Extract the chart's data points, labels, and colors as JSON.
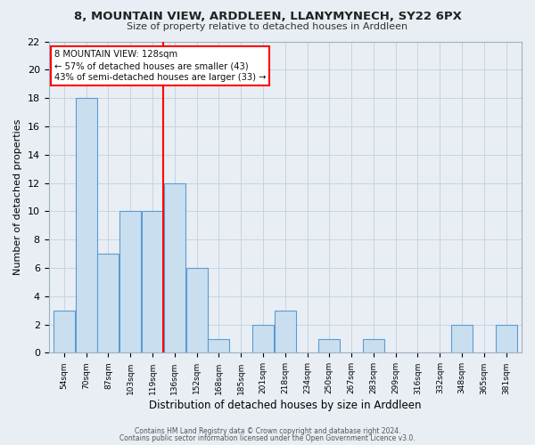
{
  "title": "8, MOUNTAIN VIEW, ARDDLEEN, LLANYMYNECH, SY22 6PX",
  "subtitle": "Size of property relative to detached houses in Arddleen",
  "xlabel": "Distribution of detached houses by size in Arddleen",
  "ylabel": "Number of detached properties",
  "bin_labels": [
    "54sqm",
    "70sqm",
    "87sqm",
    "103sqm",
    "119sqm",
    "136sqm",
    "152sqm",
    "168sqm",
    "185sqm",
    "201sqm",
    "218sqm",
    "234sqm",
    "250sqm",
    "267sqm",
    "283sqm",
    "299sqm",
    "316sqm",
    "332sqm",
    "348sqm",
    "365sqm",
    "381sqm"
  ],
  "bar_heights": [
    3,
    18,
    7,
    10,
    10,
    12,
    6,
    1,
    0,
    2,
    3,
    0,
    1,
    0,
    1,
    0,
    0,
    0,
    2,
    0,
    2
  ],
  "bar_color": "#c9dff0",
  "bar_edge_color": "#5b9bd5",
  "vline_x": 5.0,
  "ylim": [
    0,
    22
  ],
  "yticks": [
    0,
    2,
    4,
    6,
    8,
    10,
    12,
    14,
    16,
    18,
    20,
    22
  ],
  "annotation_title": "8 MOUNTAIN VIEW: 128sqm",
  "annotation_line1": "← 57% of detached houses are smaller (43)",
  "annotation_line2": "43% of semi-detached houses are larger (33) →",
  "footer1": "Contains HM Land Registry data © Crown copyright and database right 2024.",
  "footer2": "Contains public sector information licensed under the Open Government Licence v3.0.",
  "background_color": "#e8eef4",
  "plot_bg_color": "#e8eef4",
  "grid_color": "#c8d4e0"
}
